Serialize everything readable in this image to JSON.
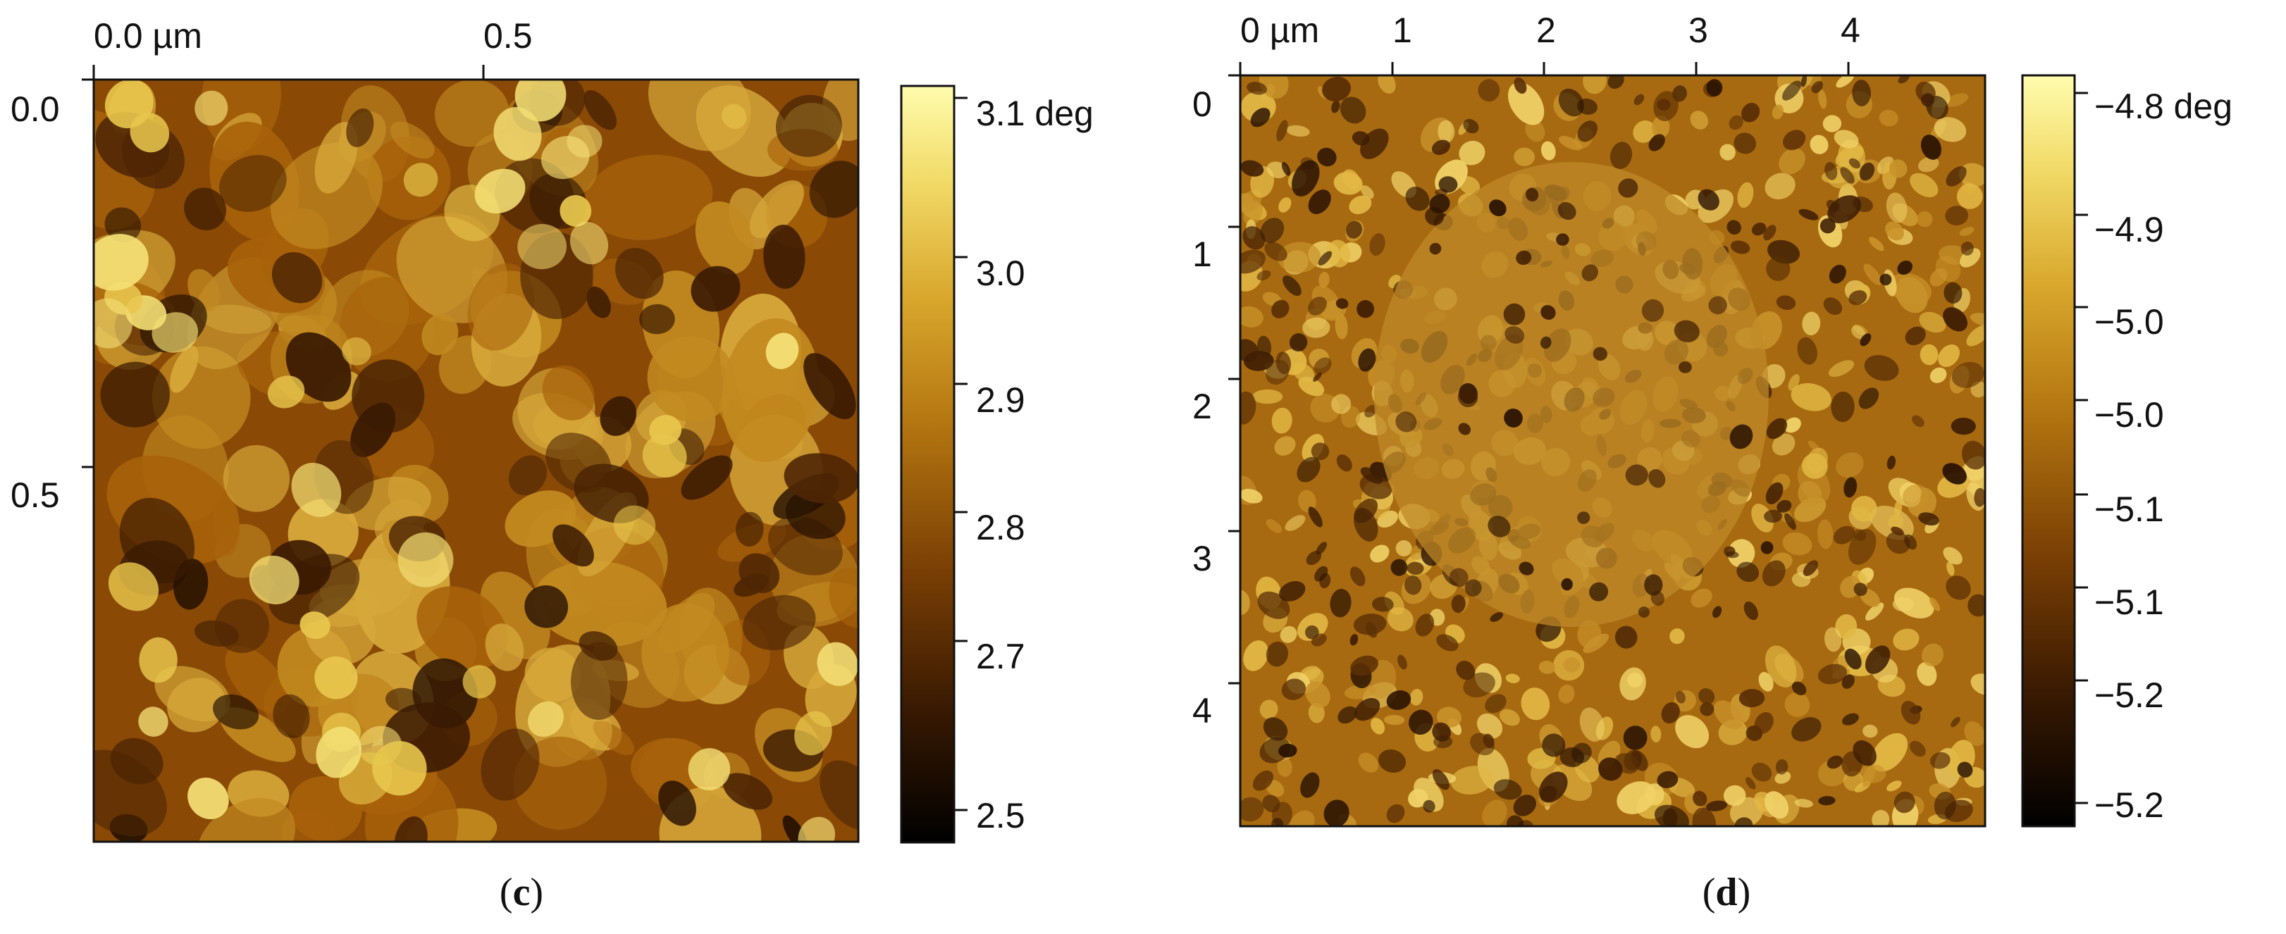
{
  "panels": [
    {
      "id": "c",
      "caption_letter": "c",
      "x_ticks": [
        "0.0 µm",
        "0.5"
      ],
      "y_ticks": [
        "0.0",
        "0.5"
      ],
      "colorbar_ticks": [
        "3.1 deg",
        "3.0",
        "2.9",
        "2.8",
        "2.7",
        "2.5"
      ],
      "texture": "afm-phase-large-blobs",
      "colormap": [
        "#000000",
        "#3a1a02",
        "#7a3f04",
        "#b37510",
        "#d9a72c",
        "#f2dc6a",
        "#fffcae"
      ]
    },
    {
      "id": "d",
      "caption_letter": "d",
      "x_ticks": [
        "0 µm",
        "1",
        "2",
        "3",
        "4"
      ],
      "y_ticks": [
        "0",
        "1",
        "2",
        "3",
        "4"
      ],
      "colorbar_ticks": [
        "−4.8 deg",
        "−4.9",
        "−5.0",
        "−5.0",
        "−5.1",
        "−5.1",
        "−5.2",
        "−5.2"
      ],
      "texture": "afm-phase-fine-domains",
      "colormap": [
        "#000000",
        "#3a1a02",
        "#7a3f04",
        "#b37510",
        "#d9a72c",
        "#f2dc6a",
        "#fffcae"
      ]
    }
  ]
}
